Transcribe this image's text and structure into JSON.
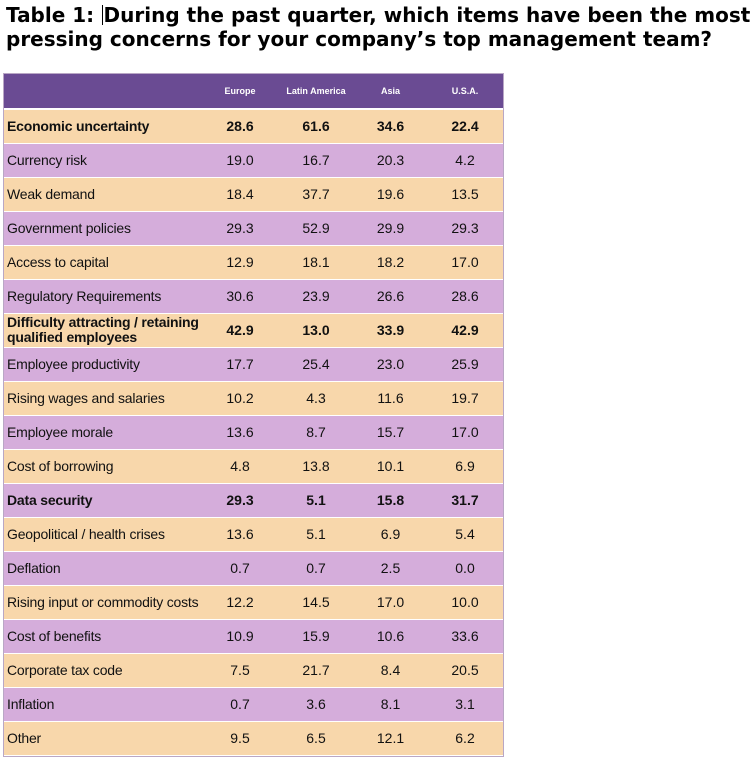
{
  "title": {
    "label": "Table 1:",
    "text": "During the past quarter, which items have been the most pressing concerns for your company’s top management team?"
  },
  "chart_data": {
    "type": "table",
    "columns": [
      "",
      "Europe",
      "Latin America",
      "Asia",
      "U.S.A."
    ],
    "rows": [
      {
        "label": "Economic uncertainty",
        "values": [
          "28.6",
          "61.6",
          "34.6",
          "22.4"
        ],
        "bold": true
      },
      {
        "label": "Currency risk",
        "values": [
          "19.0",
          "16.7",
          "20.3",
          "4.2"
        ],
        "bold": false
      },
      {
        "label": "Weak demand",
        "values": [
          "18.4",
          "37.7",
          "19.6",
          "13.5"
        ],
        "bold": false
      },
      {
        "label": "Government policies",
        "values": [
          "29.3",
          "52.9",
          "29.9",
          "29.3"
        ],
        "bold": false
      },
      {
        "label": "Access to capital",
        "values": [
          "12.9",
          "18.1",
          "18.2",
          "17.0"
        ],
        "bold": false
      },
      {
        "label": "Regulatory Requirements",
        "values": [
          "30.6",
          "23.9",
          "26.6",
          "28.6"
        ],
        "bold": false
      },
      {
        "label": "Difficulty attracting / retaining qualified employees",
        "values": [
          "42.9",
          "13.0",
          "33.9",
          "42.9"
        ],
        "bold": true
      },
      {
        "label": "Employee productivity",
        "values": [
          "17.7",
          "25.4",
          "23.0",
          "25.9"
        ],
        "bold": false
      },
      {
        "label": "Rising wages and salaries",
        "values": [
          "10.2",
          "4.3",
          "11.6",
          "19.7"
        ],
        "bold": false
      },
      {
        "label": "Employee morale",
        "values": [
          "13.6",
          "8.7",
          "15.7",
          "17.0"
        ],
        "bold": false
      },
      {
        "label": "Cost of borrowing",
        "values": [
          "4.8",
          "13.8",
          "10.1",
          "6.9"
        ],
        "bold": false
      },
      {
        "label": "Data security",
        "values": [
          "29.3",
          "5.1",
          "15.8",
          "31.7"
        ],
        "bold": true
      },
      {
        "label": "Geopolitical / health crises",
        "values": [
          "13.6",
          "5.1",
          "6.9",
          "5.4"
        ],
        "bold": false
      },
      {
        "label": "Deflation",
        "values": [
          "0.7",
          "0.7",
          "2.5",
          "0.0"
        ],
        "bold": false
      },
      {
        "label": "Rising input or commodity costs",
        "values": [
          "12.2",
          "14.5",
          "17.0",
          "10.0"
        ],
        "bold": false
      },
      {
        "label": "Cost of benefits",
        "values": [
          "10.9",
          "15.9",
          "10.6",
          "33.6"
        ],
        "bold": false
      },
      {
        "label": "Corporate tax code",
        "values": [
          "7.5",
          "21.7",
          "8.4",
          "20.5"
        ],
        "bold": false
      },
      {
        "label": "Inflation",
        "values": [
          "0.7",
          "3.6",
          "8.1",
          "3.1"
        ],
        "bold": false
      },
      {
        "label": "Other",
        "values": [
          "9.5",
          "6.5",
          "12.1",
          "6.2"
        ],
        "bold": false
      }
    ],
    "colors": {
      "header": "#6a4b93",
      "row_odd": "#f8d7ab",
      "row_even": "#d5addb"
    }
  }
}
